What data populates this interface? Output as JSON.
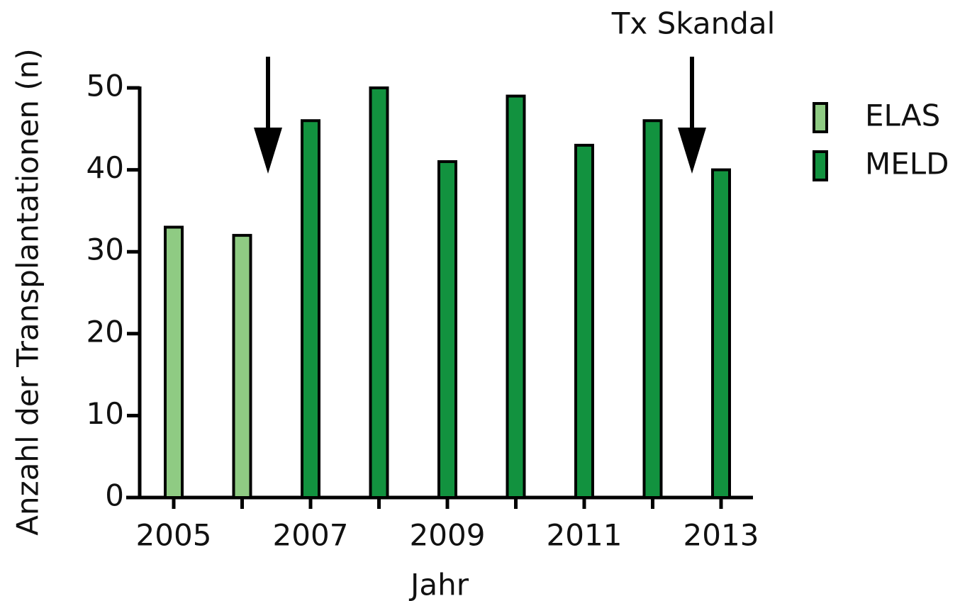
{
  "chart_data": {
    "type": "bar",
    "annotation": "Tx Skandal",
    "x_label": "Jahr",
    "y_label": "Anzahl der Transplantationen (n)",
    "categories": [
      "2005",
      null,
      "2007",
      null,
      "2009",
      null,
      "2011",
      null,
      "2013"
    ],
    "series": [
      {
        "name": "ELAS",
        "color": "#8fcb83",
        "values": [
          33,
          32,
          null,
          null,
          null,
          null,
          null,
          null,
          null
        ]
      },
      {
        "name": "MELD",
        "color": "#12923f",
        "values": [
          null,
          null,
          46,
          50,
          41,
          49,
          43,
          46,
          40
        ]
      }
    ],
    "ylim": [
      0,
      50
    ],
    "yticks": [
      0,
      10,
      20,
      30,
      40,
      50
    ],
    "legend": "right"
  }
}
